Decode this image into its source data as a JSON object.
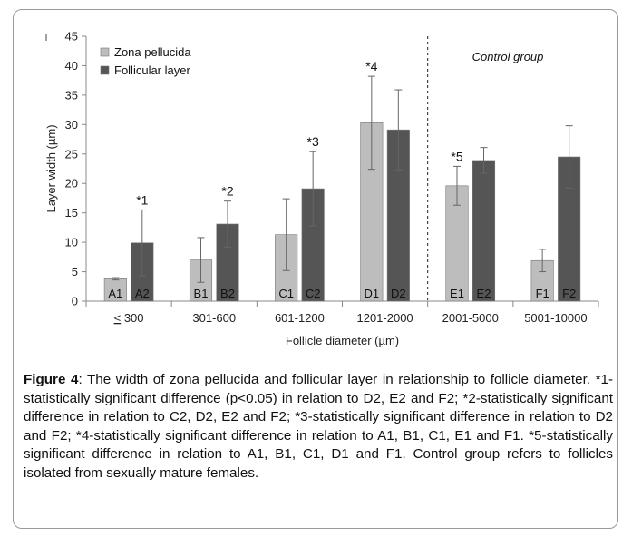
{
  "chart_data": {
    "type": "bar",
    "categories": [
      "≤ 300",
      "301-600",
      "601-1200",
      "1201-2000",
      "2001-5000",
      "5001-10000"
    ],
    "category_display": [
      {
        "u": "<",
        "rest": " 300"
      },
      null,
      null,
      null,
      null,
      null
    ],
    "series": [
      {
        "name": "Zona pellucida",
        "color": "#bdbdbd",
        "values": [
          3.8,
          7.0,
          11.3,
          30.3,
          19.6,
          6.9
        ],
        "errors": [
          0.2,
          3.8,
          6.1,
          7.9,
          3.3,
          1.9
        ],
        "bar_labels": [
          "A1",
          "B1",
          "C1",
          "D1",
          "E1",
          "F1"
        ]
      },
      {
        "name": "Follicular layer",
        "color": "#555555",
        "values": [
          9.9,
          13.1,
          19.1,
          29.1,
          23.9,
          24.5
        ],
        "errors": [
          5.6,
          3.9,
          6.3,
          6.8,
          2.2,
          5.3
        ],
        "bar_labels": [
          "A2",
          "B2",
          "C2",
          "D2",
          "E2",
          "F2"
        ]
      }
    ],
    "significance_labels": [
      {
        "category_index": 0,
        "series_index": 1,
        "text": "*1"
      },
      {
        "category_index": 1,
        "series_index": 1,
        "text": "*2"
      },
      {
        "category_index": 2,
        "series_index": 1,
        "text": "*3"
      },
      {
        "category_index": 3,
        "series_index": 0,
        "text": "*4"
      },
      {
        "category_index": 4,
        "series_index": 0,
        "text": "*5"
      }
    ],
    "annotation": "Control group",
    "divider_after_category": 3,
    "xlabel": "Follicle diameter (µm)",
    "ylabel": "Layer width (µm)",
    "ylim": [
      0,
      45
    ],
    "yticks": [
      0,
      5,
      10,
      15,
      20,
      25,
      30,
      35,
      40,
      45
    ],
    "legend_position": "top-left",
    "grid": false
  },
  "caption": {
    "label": "Figure 4",
    "text": ": The width of zona pellucida and follicular layer in relationship to follicle diameter. *1-statistically significant difference (p<0.05) in relation to D2, E2 and F2; *2-statistically significant difference in relation to C2, D2, E2 and F2; *3-statistically significant difference in relation to D2 and F2; *4-statistically significant difference in relation to A1, B1, C1, E1 and F1. *5-statistically significant difference in relation to A1, B1, C1, D1 and F1. Control group refers to follicles isolated from sexually mature females."
  }
}
